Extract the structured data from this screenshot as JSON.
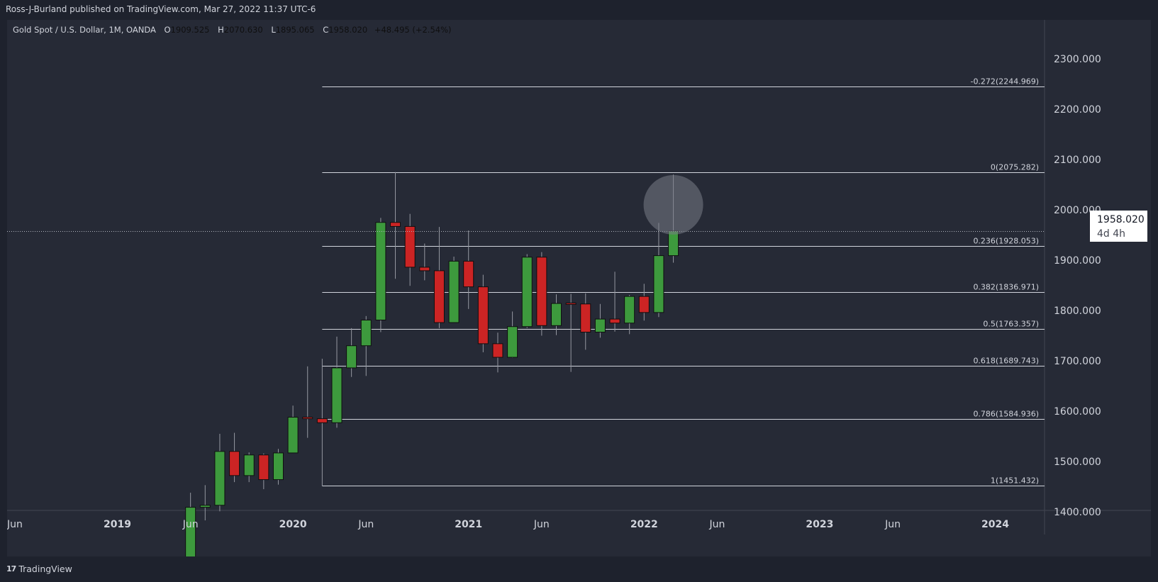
{
  "header": {
    "text": "Ross-J-Burland published on TradingView.com, Mar 27, 2022 11:37 UTC-6"
  },
  "legend": {
    "symbol": "Gold Spot / U.S. Dollar, 1M, OANDA",
    "open_label": "O",
    "open": "1909.525",
    "high_label": "H",
    "high": "2070.630",
    "low_label": "L",
    "low": "1895.065",
    "close_label": "C",
    "close": "1958.020",
    "change": "+48.495 (+2.54%)"
  },
  "price_label": {
    "price": "1958.020",
    "countdown": "4d 4h"
  },
  "footer": {
    "brand": "TradingView",
    "logo_icon": "tradingview-logo-icon"
  },
  "colors": {
    "up": "#3d9a3d",
    "down": "#cc2424",
    "background": "#262a36",
    "fib_line": "#d1d4dc",
    "highlight": "#787b86"
  },
  "chart_data": {
    "type": "candlestick",
    "timeframe": "1M",
    "ylim": [
      1365,
      2345
    ],
    "y_ticks": [
      "2300.000",
      "2200.000",
      "2100.000",
      "2000.000",
      "1900.000",
      "1800.000",
      "1700.000",
      "1600.000",
      "1500.000",
      "1400.000"
    ],
    "x_ticks": [
      "Jun",
      "2019",
      "Jun",
      "2020",
      "Jun",
      "2021",
      "Jun",
      "2022",
      "Jun",
      "2023",
      "Jun",
      "2024"
    ],
    "x_tick_dates": [
      "2018-06",
      "2019-01",
      "2019-06",
      "2020-01",
      "2020-06",
      "2021-01",
      "2021-06",
      "2022-01",
      "2022-06",
      "2023-01",
      "2023-06",
      "2024-01"
    ],
    "candles": [
      {
        "date": "2019-06",
        "o": 1305,
        "h": 1438,
        "l": 1290,
        "c": 1409
      },
      {
        "date": "2019-07",
        "o": 1409,
        "h": 1453,
        "l": 1383,
        "c": 1413
      },
      {
        "date": "2019-08",
        "o": 1413,
        "h": 1555,
        "l": 1401,
        "c": 1520
      },
      {
        "date": "2019-09",
        "o": 1520,
        "h": 1557,
        "l": 1459,
        "c": 1472
      },
      {
        "date": "2019-10",
        "o": 1472,
        "h": 1518,
        "l": 1459,
        "c": 1513
      },
      {
        "date": "2019-11",
        "o": 1513,
        "h": 1516,
        "l": 1445,
        "c": 1464
      },
      {
        "date": "2019-12",
        "o": 1464,
        "h": 1525,
        "l": 1454,
        "c": 1517
      },
      {
        "date": "2020-01",
        "o": 1517,
        "h": 1611,
        "l": 1517,
        "c": 1588
      },
      {
        "date": "2020-02",
        "o": 1588,
        "h": 1689,
        "l": 1547,
        "c": 1585
      },
      {
        "date": "2020-03",
        "o": 1585,
        "h": 1704,
        "l": 1451,
        "c": 1577
      },
      {
        "date": "2020-04",
        "o": 1577,
        "h": 1748,
        "l": 1567,
        "c": 1686
      },
      {
        "date": "2020-05",
        "o": 1686,
        "h": 1765,
        "l": 1668,
        "c": 1730
      },
      {
        "date": "2020-06",
        "o": 1730,
        "h": 1789,
        "l": 1670,
        "c": 1781
      },
      {
        "date": "2020-07",
        "o": 1781,
        "h": 1984,
        "l": 1757,
        "c": 1975
      },
      {
        "date": "2020-08",
        "o": 1975,
        "h": 2075,
        "l": 1863,
        "c": 1967
      },
      {
        "date": "2020-09",
        "o": 1967,
        "h": 1992,
        "l": 1849,
        "c": 1886
      },
      {
        "date": "2020-10",
        "o": 1886,
        "h": 1933,
        "l": 1860,
        "c": 1879
      },
      {
        "date": "2020-11",
        "o": 1879,
        "h": 1966,
        "l": 1765,
        "c": 1776
      },
      {
        "date": "2020-12",
        "o": 1776,
        "h": 1907,
        "l": 1776,
        "c": 1898
      },
      {
        "date": "2021-01",
        "o": 1898,
        "h": 1959,
        "l": 1803,
        "c": 1847
      },
      {
        "date": "2021-02",
        "o": 1847,
        "h": 1871,
        "l": 1717,
        "c": 1734
      },
      {
        "date": "2021-03",
        "o": 1734,
        "h": 1756,
        "l": 1677,
        "c": 1707
      },
      {
        "date": "2021-04",
        "o": 1707,
        "h": 1798,
        "l": 1706,
        "c": 1768
      },
      {
        "date": "2021-05",
        "o": 1768,
        "h": 1912,
        "l": 1765,
        "c": 1906
      },
      {
        "date": "2021-06",
        "o": 1906,
        "h": 1916,
        "l": 1750,
        "c": 1770
      },
      {
        "date": "2021-07",
        "o": 1770,
        "h": 1832,
        "l": 1751,
        "c": 1814
      },
      {
        "date": "2021-08",
        "o": 1814,
        "h": 1833,
        "l": 1678,
        "c": 1813
      },
      {
        "date": "2021-09",
        "o": 1813,
        "h": 1834,
        "l": 1722,
        "c": 1757
      },
      {
        "date": "2021-10",
        "o": 1757,
        "h": 1813,
        "l": 1746,
        "c": 1783
      },
      {
        "date": "2021-11",
        "o": 1783,
        "h": 1877,
        "l": 1758,
        "c": 1775
      },
      {
        "date": "2021-12",
        "o": 1775,
        "h": 1831,
        "l": 1753,
        "c": 1828
      },
      {
        "date": "2022-01",
        "o": 1828,
        "h": 1853,
        "l": 1780,
        "c": 1796
      },
      {
        "date": "2022-02",
        "o": 1796,
        "h": 1974,
        "l": 1787,
        "c": 1909
      },
      {
        "date": "2022-03",
        "o": 1909,
        "h": 2070,
        "l": 1895,
        "c": 1958
      }
    ],
    "fibonacci": {
      "start_date": "2020-03",
      "levels": [
        {
          "label": "-0.272(2244.969)",
          "price": 2244.969
        },
        {
          "label": "0(2075.282)",
          "price": 2075.282
        },
        {
          "label": "0.236(1928.053)",
          "price": 1928.053
        },
        {
          "label": "0.382(1836.971)",
          "price": 1836.971
        },
        {
          "label": "0.5(1763.357)",
          "price": 1763.357
        },
        {
          "label": "0.618(1689.743)",
          "price": 1689.743
        },
        {
          "label": "0.786(1584.936)",
          "price": 1584.936
        },
        {
          "label": "1(1451.432)",
          "price": 1451.432
        }
      ]
    },
    "last_price": 1958.02,
    "highlight": {
      "date": "2022-03",
      "price": 2010
    }
  }
}
